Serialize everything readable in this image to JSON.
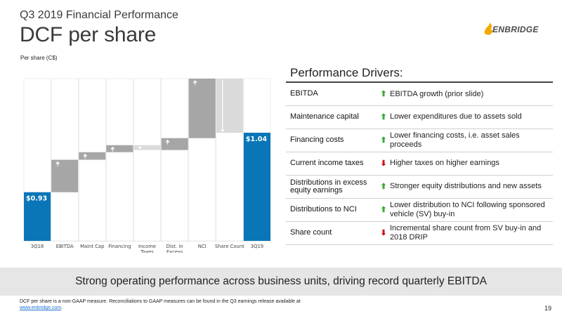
{
  "header": {
    "kicker": "Q3 2019 Financial Performance",
    "title": "DCF per share",
    "unit": "Per share (C$)"
  },
  "logo": {
    "text": "ENBRIDGE",
    "mark_color": "#f2a900"
  },
  "colors": {
    "endpoint_bar": "#0a76b8",
    "increase_bar": "#a6a6a6",
    "decrease_bar": "#dadada",
    "connector": "#ffffff",
    "axis": "#bfbfbf",
    "arrow_up": "#3aaa35",
    "arrow_down": "#d0121b"
  },
  "chart_data": {
    "type": "bar",
    "subtype": "waterfall",
    "ylabel": "Per share (C$)",
    "categories": [
      "3Q18",
      "EBITDA",
      "Maint Cap",
      "Financing",
      "Income Taxes",
      "Dist. in Excess",
      "NCI",
      "Share Count",
      "3Q19"
    ],
    "tick_labels": [
      [
        "3Q18"
      ],
      [
        "EBITDA"
      ],
      [
        "Maint Cap"
      ],
      [
        "Financing"
      ],
      [
        "Income",
        "Taxes"
      ],
      [
        "Dist. in",
        "Excess"
      ],
      [
        "NCI"
      ],
      [
        "Share Count"
      ],
      [
        "3Q19"
      ]
    ],
    "bars": [
      {
        "category": "3Q18",
        "kind": "total",
        "value": 0.93
      },
      {
        "category": "EBITDA",
        "kind": "increase",
        "start": 0.93,
        "end": 0.99
      },
      {
        "category": "Maint Cap",
        "kind": "increase",
        "start": 0.99,
        "end": 1.004
      },
      {
        "category": "Financing",
        "kind": "increase",
        "start": 1.004,
        "end": 1.017
      },
      {
        "category": "Income Taxes",
        "kind": "decrease",
        "start": 1.017,
        "end": 1.008
      },
      {
        "category": "Dist. in Excess",
        "kind": "increase",
        "start": 1.008,
        "end": 1.03
      },
      {
        "category": "NCI",
        "kind": "increase",
        "start": 1.03,
        "end": 1.14
      },
      {
        "category": "Share Count",
        "kind": "decrease",
        "start": 1.14,
        "end": 1.04
      },
      {
        "category": "3Q19",
        "kind": "total",
        "value": 1.04
      }
    ],
    "data_labels": [
      {
        "category": "3Q18",
        "text": "$0.93"
      },
      {
        "category": "3Q19",
        "text": "$1.04"
      }
    ],
    "ylim": [
      0.84,
      1.14
    ],
    "grid": false,
    "legend": "none"
  },
  "drivers": {
    "title": "Performance Drivers:",
    "rows": [
      {
        "label": "EBITDA",
        "direction": "up",
        "description": "EBITDA growth (prior slide)"
      },
      {
        "label": "Maintenance capital",
        "direction": "up",
        "description": "Lower expenditures due to assets sold"
      },
      {
        "label": "Financing costs",
        "direction": "up",
        "description": "Lower financing costs, i.e. asset sales proceeds"
      },
      {
        "label": "Current income taxes",
        "direction": "down",
        "description": "Higher taxes on higher earnings"
      },
      {
        "label": "Distributions in excess equity earnings",
        "direction": "up",
        "description": "Stronger equity distributions and new assets"
      },
      {
        "label": "Distributions to NCI",
        "direction": "up",
        "description": "Lower distribution to NCI following sponsored vehicle (SV) buy-in"
      },
      {
        "label": "Share count",
        "direction": "down",
        "description": "Incremental share count from SV buy-in and 2018 DRIP"
      }
    ]
  },
  "banner": {
    "text": "Strong operating performance across business units, driving record quarterly EBITDA"
  },
  "footnote": {
    "text": "DCF per share is a non-GAAP measure. Reconciliations to GAAP measures can be found in the Q3 earnings release available at",
    "link_text": "www.enbridge.com",
    "suffix": "."
  },
  "page_number": "19"
}
